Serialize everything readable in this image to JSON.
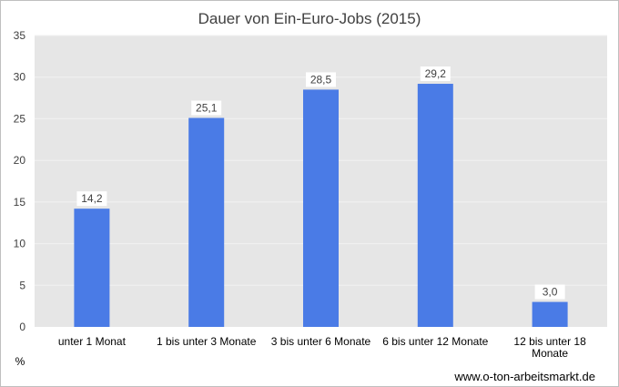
{
  "chart_data": {
    "type": "bar",
    "title": "Dauer von Ein-Euro-Jobs (2015)",
    "categories": [
      [
        "unter 1 Monat"
      ],
      [
        "1 bis unter 3 Monate"
      ],
      [
        "3 bis unter 6 Monate"
      ],
      [
        "6 bis unter 12 Monate"
      ],
      [
        "12 bis unter 18",
        "Monate"
      ]
    ],
    "values": [
      14.2,
      25.1,
      28.5,
      29.2,
      3.0
    ],
    "data_labels": [
      "14,2",
      "25,1",
      "28,5",
      "29,2",
      "3,0"
    ],
    "ylim": [
      0,
      35
    ],
    "yticks": [
      0,
      5,
      10,
      15,
      20,
      25,
      30,
      35
    ],
    "ylabel": "%",
    "xlabel": "",
    "grid": true,
    "legend": "none",
    "source": "www.o-ton-arbeitsmarkt.de",
    "colors": {
      "bar": "#4a7be6",
      "plot_background": "#e6e6e6",
      "gridline": "#f2f2f2"
    }
  }
}
